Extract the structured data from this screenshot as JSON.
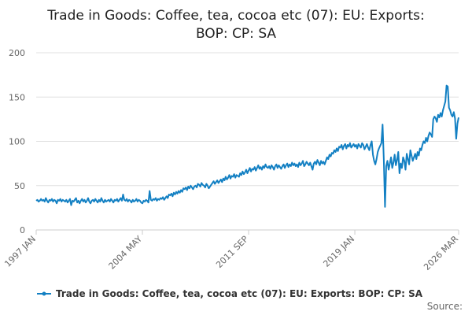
{
  "chart_data": {
    "type": "line",
    "title": "Trade in Goods: Coffee, tea, cocoa etc (07): EU: Exports: BOP: CP: SA",
    "source": "Source:",
    "categories": [
      "1997 JAN",
      null,
      null,
      null,
      null,
      null,
      null,
      null,
      null,
      null,
      null,
      null,
      null,
      null,
      null,
      null,
      null,
      null,
      null,
      null,
      null,
      null,
      null,
      null,
      null,
      null,
      null,
      null,
      null,
      null,
      null,
      null,
      null,
      null,
      null,
      null,
      null,
      null,
      null,
      null,
      null,
      null,
      null,
      null,
      null,
      null,
      null,
      null,
      null,
      null,
      null,
      null,
      null,
      null,
      null,
      null,
      null,
      null,
      null,
      null,
      null,
      null,
      null,
      null,
      null,
      null,
      null,
      null,
      null,
      null,
      null,
      null,
      null,
      null,
      null,
      null,
      null,
      null,
      null,
      null,
      null,
      null,
      null,
      null,
      null,
      null,
      null,
      null,
      "2004 MAY",
      null,
      null,
      null,
      null,
      null,
      null,
      null,
      null,
      null,
      null,
      null,
      null,
      null,
      null,
      null,
      null,
      null,
      null,
      null,
      null,
      null,
      null,
      null,
      null,
      null,
      null,
      null,
      null,
      null,
      null,
      null,
      null,
      null,
      null,
      null,
      null,
      null,
      null,
      null,
      null,
      null,
      null,
      null,
      null,
      null,
      null,
      null,
      null,
      null,
      null,
      null,
      null,
      null,
      null,
      null,
      null,
      null,
      null,
      null,
      null,
      null,
      null,
      null,
      null,
      null,
      null,
      null,
      null,
      null,
      null,
      null,
      null,
      null,
      null,
      null,
      null,
      null,
      null,
      null,
      null,
      null,
      null,
      null,
      null,
      null,
      null,
      null,
      "2011 SEP",
      null,
      null,
      null,
      null,
      null,
      null,
      null,
      null,
      null,
      null,
      null,
      null,
      null,
      null,
      null,
      null,
      null,
      null,
      null,
      null,
      null,
      null,
      null,
      null,
      null,
      null,
      null,
      null,
      null,
      null,
      null,
      null,
      null,
      null,
      null,
      null,
      null,
      null,
      null,
      null,
      null,
      null,
      null,
      null,
      null,
      null,
      null,
      null,
      null,
      null,
      null,
      null,
      null,
      null,
      null,
      null,
      null,
      null,
      null,
      null,
      null,
      null,
      null,
      null,
      null,
      null,
      null,
      null,
      null,
      null,
      null,
      null,
      null,
      null,
      null,
      null,
      null,
      null,
      null,
      null,
      null,
      null,
      null,
      null,
      null,
      null,
      null,
      "2019 JAN",
      null,
      null,
      null,
      null,
      null,
      null,
      null,
      null,
      null,
      null,
      null,
      null,
      null,
      null,
      null,
      null,
      null,
      null,
      null,
      null,
      null,
      null,
      null,
      null,
      null,
      null,
      null,
      null,
      null,
      null,
      null,
      null,
      null,
      null,
      null,
      null,
      null,
      null,
      null,
      null,
      null,
      null,
      null,
      null,
      null,
      null,
      null,
      null,
      null,
      null,
      null,
      null,
      null,
      null,
      null,
      null,
      null,
      null,
      null,
      null,
      null,
      null,
      null,
      null,
      null,
      null,
      null,
      null,
      null,
      null,
      null,
      null,
      null,
      null,
      null,
      null,
      null,
      null,
      null,
      null,
      null,
      null,
      null,
      null,
      null,
      "2026 MAR"
    ],
    "series": [
      {
        "name": "Trade in Goods: Coffee, tea, cocoa etc (07): EU: Exports: BOP: CP: SA",
        "color": "#1380c3",
        "values": [
          33,
          34,
          32,
          33,
          35,
          33,
          34,
          32,
          36,
          33,
          31,
          34,
          33,
          35,
          32,
          34,
          33,
          30,
          34,
          33,
          35,
          32,
          34,
          33,
          32,
          34,
          31,
          33,
          35,
          28,
          33,
          32,
          34,
          36,
          31,
          33,
          30,
          33,
          35,
          32,
          34,
          31,
          33,
          36,
          32,
          30,
          33,
          34,
          32,
          35,
          33,
          31,
          34,
          32,
          36,
          33,
          31,
          34,
          32,
          33,
          34,
          32,
          35,
          33,
          31,
          34,
          33,
          35,
          32,
          34,
          36,
          33,
          40,
          34,
          33,
          35,
          32,
          34,
          33,
          31,
          34,
          32,
          33,
          35,
          32,
          34,
          33,
          31,
          30,
          33,
          32,
          34,
          33,
          31,
          44,
          34,
          33,
          35,
          34,
          36,
          33,
          35,
          34,
          36,
          35,
          37,
          34,
          36,
          38,
          36,
          40,
          39,
          41,
          38,
          42,
          40,
          43,
          41,
          44,
          42,
          45,
          43,
          47,
          46,
          48,
          45,
          49,
          47,
          50,
          48,
          46,
          49,
          50,
          48,
          52,
          51,
          49,
          53,
          51,
          50,
          48,
          52,
          50,
          47,
          49,
          51,
          53,
          55,
          52,
          54,
          56,
          53,
          55,
          57,
          54,
          58,
          56,
          60,
          57,
          59,
          62,
          58,
          61,
          60,
          63,
          59,
          62,
          61,
          60,
          64,
          62,
          66,
          63,
          65,
          68,
          64,
          67,
          70,
          66,
          69,
          68,
          71,
          67,
          70,
          73,
          69,
          71,
          68,
          72,
          70,
          74,
          71,
          70,
          72,
          69,
          73,
          71,
          68,
          72,
          74,
          70,
          73,
          71,
          69,
          72,
          74,
          70,
          73,
          75,
          71,
          74,
          72,
          76,
          73,
          75,
          72,
          74,
          71,
          76,
          73,
          75,
          78,
          72,
          74,
          77,
          75,
          73,
          76,
          72,
          68,
          75,
          77,
          74,
          79,
          76,
          73,
          78,
          75,
          77,
          74,
          78,
          82,
          80,
          85,
          83,
          87,
          86,
          90,
          88,
          92,
          89,
          94,
          93,
          96,
          91,
          95,
          97,
          92,
          96,
          94,
          98,
          93,
          95,
          97,
          94,
          96,
          92,
          97,
          95,
          93,
          98,
          96,
          91,
          94,
          97,
          93,
          90,
          96,
          100,
          85,
          78,
          74,
          80,
          88,
          92,
          95,
          98,
          119,
          80,
          26,
          72,
          78,
          68,
          75,
          82,
          70,
          76,
          85,
          73,
          79,
          88,
          64,
          75,
          70,
          82,
          78,
          68,
          86,
          80,
          74,
          90,
          84,
          78,
          82,
          86,
          80,
          88,
          84,
          92,
          90,
          96,
          100,
          98,
          104,
          100,
          106,
          110,
          108,
          105,
          125,
          128,
          126,
          122,
          130,
          127,
          132,
          128,
          135,
          140,
          145,
          163,
          162,
          138,
          135,
          130,
          128,
          133,
          126,
          103,
          120,
          127
        ]
      }
    ],
    "ylim": [
      0,
      200
    ],
    "yticks": [
      0,
      50,
      100,
      150,
      200
    ],
    "grid": true
  }
}
